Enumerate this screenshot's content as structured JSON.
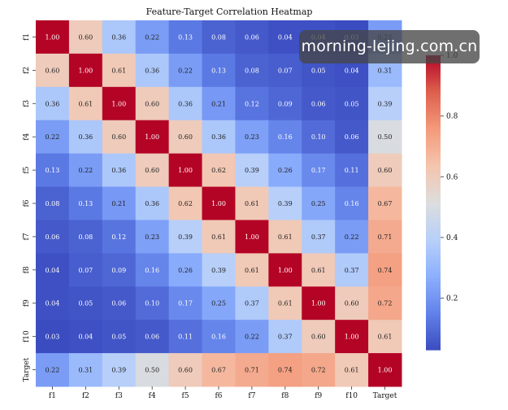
{
  "chart_data": {
    "type": "heatmap",
    "title": "Feature-Target Correlation Heatmap",
    "labels": [
      "f1",
      "f2",
      "f3",
      "f4",
      "f5",
      "f6",
      "f7",
      "f8",
      "f9",
      "f10",
      "Target"
    ],
    "values": [
      [
        1.0,
        0.6,
        0.36,
        0.22,
        0.13,
        0.08,
        0.06,
        0.04,
        0.04,
        0.03,
        0.22
      ],
      [
        0.6,
        1.0,
        0.61,
        0.36,
        0.22,
        0.13,
        0.08,
        0.07,
        0.05,
        0.04,
        0.31
      ],
      [
        0.36,
        0.61,
        1.0,
        0.6,
        0.36,
        0.21,
        0.12,
        0.09,
        0.06,
        0.05,
        0.39
      ],
      [
        0.22,
        0.36,
        0.6,
        1.0,
        0.6,
        0.36,
        0.23,
        0.16,
        0.1,
        0.06,
        0.5
      ],
      [
        0.13,
        0.22,
        0.36,
        0.6,
        1.0,
        0.62,
        0.39,
        0.26,
        0.17,
        0.11,
        0.6
      ],
      [
        0.08,
        0.13,
        0.21,
        0.36,
        0.62,
        1.0,
        0.61,
        0.39,
        0.25,
        0.16,
        0.67
      ],
      [
        0.06,
        0.08,
        0.12,
        0.23,
        0.39,
        0.61,
        1.0,
        0.61,
        0.37,
        0.22,
        0.71
      ],
      [
        0.04,
        0.07,
        0.09,
        0.16,
        0.26,
        0.39,
        0.61,
        1.0,
        0.61,
        0.37,
        0.74
      ],
      [
        0.04,
        0.05,
        0.06,
        0.1,
        0.17,
        0.25,
        0.37,
        0.61,
        1.0,
        0.6,
        0.72
      ],
      [
        0.03,
        0.04,
        0.05,
        0.06,
        0.11,
        0.16,
        0.22,
        0.37,
        0.6,
        1.0,
        0.61
      ],
      [
        0.22,
        0.31,
        0.39,
        0.5,
        0.6,
        0.67,
        0.71,
        0.74,
        0.72,
        0.61,
        1.0
      ]
    ],
    "colormap": "coolwarm",
    "vmin": 0.03,
    "vmax": 1.0,
    "colorbar_ticks": [
      0.2,
      0.4,
      0.6,
      0.8,
      1.0
    ],
    "colorbar_tick_labels": [
      "0.2",
      "0.4",
      "0.6",
      "0.8",
      "1.0"
    ],
    "annotation_format": "0.00"
  },
  "watermark": "morning-lejing.com.cn"
}
